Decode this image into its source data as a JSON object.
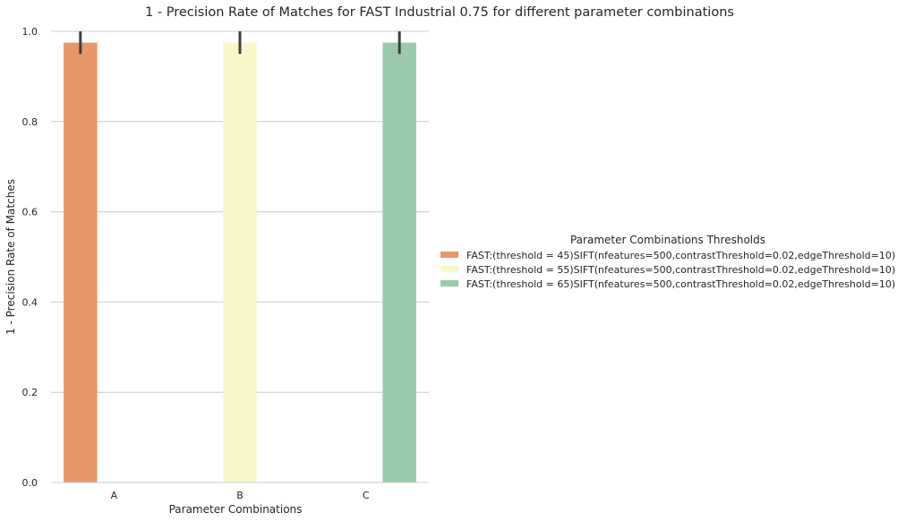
{
  "chart_data": {
    "type": "bar",
    "title": "1 - Precision Rate of Matches for FAST Industrial 0.75 for different parameter combinations",
    "xlabel": "Parameter Combinations",
    "ylabel": "1 - Precision Rate of Matches",
    "categories": [
      "A",
      "B",
      "C"
    ],
    "ylim": [
      0,
      1.0
    ],
    "yticks": [
      "0.0",
      "0.2",
      "0.4",
      "0.6",
      "0.8",
      "1.0"
    ],
    "grid": "horizontal",
    "legend": {
      "title": "Parameter Combinations Thresholds",
      "placement": "right"
    },
    "series": [
      {
        "name": "FAST:(threshold = 45)SIFT(nfeatures=500,contrastThreshold=0.02,edgeThreshold=10)",
        "color": "#e8966a",
        "values": [
          0.975,
          0,
          0
        ],
        "error": [
          [
            0.95,
            1.0
          ],
          null,
          null
        ]
      },
      {
        "name": "FAST:(threshold = 55)SIFT(nfeatures=500,contrastThreshold=0.02,edgeThreshold=10)",
        "color": "#f8f7c7",
        "values": [
          0,
          0.975,
          0
        ],
        "error": [
          null,
          [
            0.95,
            1.0
          ],
          null
        ]
      },
      {
        "name": "FAST:(threshold = 65)SIFT(nfeatures=500,contrastThreshold=0.02,edgeThreshold=10)",
        "color": "#98cbac",
        "values": [
          0,
          0,
          0.975
        ],
        "error": [
          null,
          null,
          [
            0.95,
            1.0
          ]
        ]
      }
    ]
  }
}
